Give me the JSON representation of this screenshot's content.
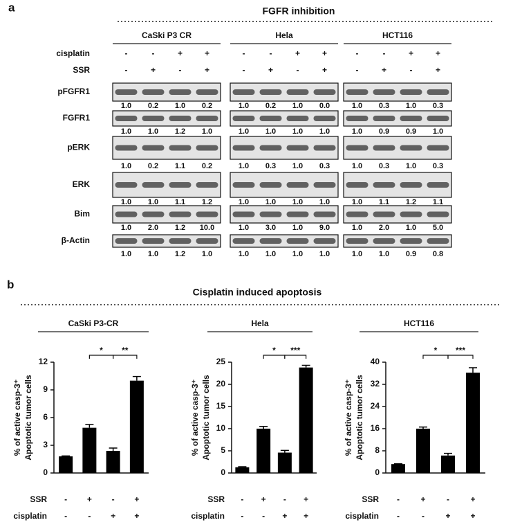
{
  "panel_a": {
    "label": "a",
    "title": "FGFR inhibition",
    "groups": [
      "CaSki P3 CR",
      "Hela",
      "HCT116"
    ],
    "conditions": [
      {
        "name": "cisplatin",
        "signs": [
          "-",
          "-",
          "+",
          "+"
        ]
      },
      {
        "name": "SSR",
        "signs": [
          "-",
          "+",
          "-",
          "+"
        ]
      }
    ],
    "blots": [
      {
        "name": "pFGFR1",
        "quant": [
          [
            "1.0",
            "0.2",
            "1.0",
            "0.2"
          ],
          [
            "1.0",
            "0.2",
            "1.0",
            "0.0"
          ],
          [
            "1.0",
            "0.3",
            "1.0",
            "0.3"
          ]
        ]
      },
      {
        "name": "FGFR1",
        "quant": [
          [
            "1.0",
            "1.0",
            "1.2",
            "1.0"
          ],
          [
            "1.0",
            "1.0",
            "1.0",
            "1.0"
          ],
          [
            "1.0",
            "0.9",
            "0.9",
            "1.0"
          ]
        ]
      },
      {
        "name": "pERK",
        "quant": [
          [
            "1.0",
            "0.2",
            "1.1",
            "0.2"
          ],
          [
            "1.0",
            "0.3",
            "1.0",
            "0.3"
          ],
          [
            "1.0",
            "0.3",
            "1.0",
            "0.3"
          ]
        ]
      },
      {
        "name": "ERK",
        "quant": [
          [
            "1.0",
            "1.0",
            "1.1",
            "1.2"
          ],
          [
            "1.0",
            "1.0",
            "1.0",
            "1.0"
          ],
          [
            "1.0",
            "1.1",
            "1.2",
            "1.1"
          ]
        ]
      },
      {
        "name": "Bim",
        "quant": [
          [
            "1.0",
            "2.0",
            "1.2",
            "10.0"
          ],
          [
            "1.0",
            "3.0",
            "1.0",
            "9.0"
          ],
          [
            "1.0",
            "2.0",
            "1.0",
            "5.0"
          ]
        ]
      },
      {
        "name": "β-Actin",
        "quant": [
          [
            "1.0",
            "1.0",
            "1.2",
            "1.0"
          ],
          [
            "1.0",
            "1.0",
            "1.0",
            "1.0"
          ],
          [
            "1.0",
            "1.0",
            "0.9",
            "0.8"
          ]
        ]
      }
    ]
  },
  "panel_b": {
    "label": "b",
    "title": "Cisplatin induced apoptosis"
  },
  "chart_data": [
    {
      "type": "bar",
      "title": "CaSki P3-CR",
      "y_label": [
        "% of  active casp-3⁺",
        "Apoptotic tumor cells"
      ],
      "color": "#000000",
      "values": [
        1.8,
        4.9,
        2.4,
        10.0
      ],
      "errors": [
        0.05,
        0.35,
        0.3,
        0.45
      ],
      "ylim": [
        0,
        12
      ],
      "yticks": [
        0,
        3,
        6,
        9,
        12
      ],
      "significance": [
        "*",
        "**"
      ],
      "conditions": [
        {
          "name": "SSR",
          "signs": [
            "-",
            "+",
            "-",
            "+"
          ]
        },
        {
          "name": "cisplatin",
          "signs": [
            "-",
            "-",
            "+",
            "+"
          ]
        }
      ]
    },
    {
      "type": "bar",
      "title": "Hela",
      "y_label": [
        "% of  active casp-3⁺",
        "Apoptotic tumor cells"
      ],
      "color": "#000000",
      "values": [
        1.3,
        10.0,
        4.6,
        23.8
      ],
      "errors": [
        0.1,
        0.5,
        0.5,
        0.5
      ],
      "ylim": [
        0,
        25
      ],
      "yticks": [
        0,
        5,
        10,
        15,
        20,
        25
      ],
      "significance": [
        "*",
        "***"
      ],
      "conditions": [
        {
          "name": "SSR",
          "signs": [
            "-",
            "+",
            "-",
            "+"
          ]
        },
        {
          "name": "cisplatin",
          "signs": [
            "-",
            "-",
            "+",
            "+"
          ]
        }
      ]
    },
    {
      "type": "bar",
      "title": "HCT116",
      "y_label": [
        "% of  active casp-3⁺",
        "Apoptotic tumor cells"
      ],
      "color": "#000000",
      "values": [
        3.2,
        16.0,
        6.3,
        36.2
      ],
      "errors": [
        0.1,
        0.6,
        0.8,
        1.8
      ],
      "ylim": [
        0,
        40
      ],
      "yticks": [
        0,
        8,
        16,
        24,
        32,
        40
      ],
      "significance": [
        "*",
        "***"
      ],
      "conditions": [
        {
          "name": "SSR",
          "signs": [
            "-",
            "+",
            "-",
            "+"
          ]
        },
        {
          "name": "cisplatin",
          "signs": [
            "-",
            "-",
            "+",
            "+"
          ]
        }
      ]
    }
  ]
}
